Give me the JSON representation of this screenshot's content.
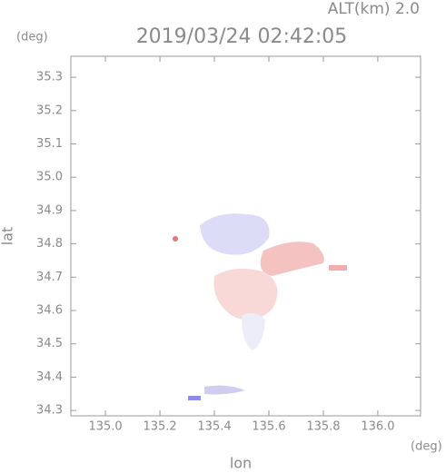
{
  "chart_data": {
    "type": "image",
    "title": "2019/03/24 02:42:05",
    "subtitle": "ALT(km) 2.0",
    "x_label": "lon",
    "y_label": "lat",
    "x_unit": "(deg)",
    "y_unit": "(deg)",
    "xlim": [
      134.873,
      136.157
    ],
    "ylim": [
      34.284,
      35.363
    ],
    "xticks": [
      {
        "value": 135,
        "label": "135.0"
      },
      {
        "value": 135.2,
        "label": "135.2"
      },
      {
        "value": 135.4,
        "label": "135.4"
      },
      {
        "value": 135.6,
        "label": "135.6"
      },
      {
        "value": 135.8,
        "label": "135.8"
      },
      {
        "value": 136,
        "label": "136.0"
      }
    ],
    "yticks": [
      34.3,
      34.4,
      34.5,
      34.6,
      34.7,
      34.8,
      34.9,
      {
        "value": 35,
        "label": "35.0"
      },
      35.1,
      35.2,
      35.3
    ],
    "grid": false
  }
}
